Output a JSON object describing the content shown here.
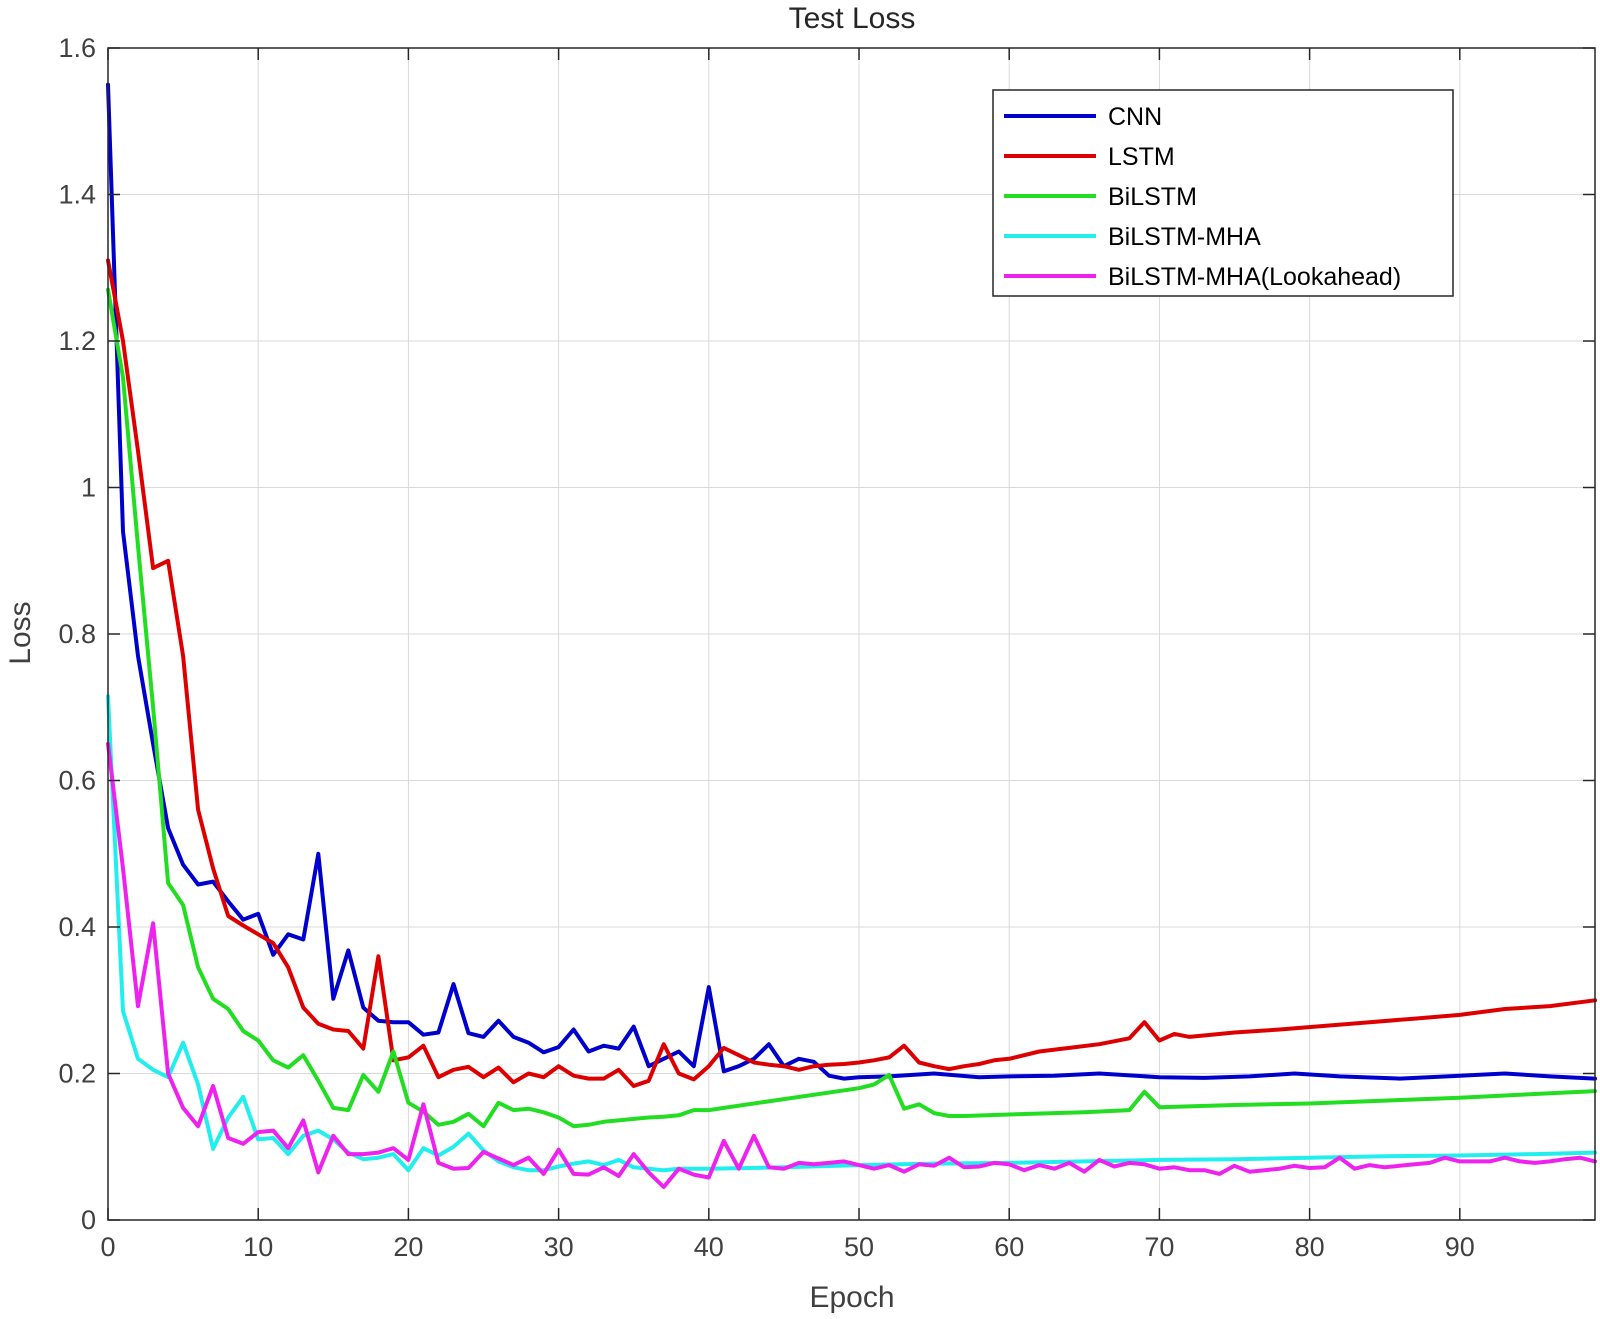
{
  "chart_data": {
    "type": "line",
    "title": "Test Loss",
    "xlabel": "Epoch",
    "ylabel": "Loss",
    "xlim": [
      0,
      99
    ],
    "ylim": [
      0,
      1.6
    ],
    "xticks": [
      0,
      10,
      20,
      30,
      40,
      50,
      60,
      70,
      80,
      90
    ],
    "xtick_labels": [
      "0",
      "10",
      "20",
      "30",
      "40",
      "50",
      "60",
      "70",
      "80",
      "90"
    ],
    "yticks": [
      0,
      0.2,
      0.4,
      0.6,
      0.8,
      1.0,
      1.2,
      1.4,
      1.6
    ],
    "ytick_labels": [
      "0",
      "0.2",
      "0.4",
      "0.6",
      "0.8",
      "1",
      "1.2",
      "1.4",
      "1.6"
    ],
    "grid": true,
    "legend_position": "top-right",
    "series": [
      {
        "name": "CNN",
        "color": "#0000cc",
        "x": [
          0,
          1,
          2,
          3,
          4,
          5,
          6,
          7,
          8,
          9,
          10,
          11,
          12,
          13,
          14,
          15,
          16,
          17,
          18,
          19,
          20,
          21,
          22,
          23,
          24,
          25,
          26,
          27,
          28,
          29,
          30,
          31,
          32,
          33,
          34,
          35,
          36,
          37,
          38,
          39,
          40,
          41,
          42,
          43,
          44,
          45,
          46,
          47,
          48,
          49,
          50,
          52,
          55,
          58,
          60,
          63,
          66,
          70,
          73,
          76,
          79,
          82,
          86,
          90,
          93,
          96,
          99
        ],
        "values": [
          1.55,
          0.94,
          0.77,
          0.65,
          0.535,
          0.485,
          0.458,
          0.462,
          0.435,
          0.41,
          0.418,
          0.362,
          0.39,
          0.383,
          0.5,
          0.302,
          0.368,
          0.29,
          0.272,
          0.27,
          0.27,
          0.253,
          0.256,
          0.322,
          0.255,
          0.25,
          0.272,
          0.25,
          0.242,
          0.229,
          0.236,
          0.26,
          0.23,
          0.238,
          0.234,
          0.264,
          0.21,
          0.22,
          0.23,
          0.21,
          0.318,
          0.203,
          0.21,
          0.22,
          0.24,
          0.21,
          0.22,
          0.216,
          0.197,
          0.193,
          0.195,
          0.196,
          0.2,
          0.195,
          0.196,
          0.197,
          0.2,
          0.195,
          0.194,
          0.196,
          0.2,
          0.196,
          0.193,
          0.197,
          0.2,
          0.196,
          0.193
        ]
      },
      {
        "name": "LSTM",
        "color": "#dd0000",
        "x": [
          0,
          1,
          2,
          3,
          4,
          5,
          6,
          7,
          8,
          9,
          10,
          11,
          12,
          13,
          14,
          15,
          16,
          17,
          18,
          19,
          20,
          21,
          22,
          23,
          24,
          25,
          26,
          27,
          28,
          29,
          30,
          31,
          32,
          33,
          34,
          35,
          36,
          37,
          38,
          39,
          40,
          41,
          42,
          43,
          44,
          45,
          46,
          47,
          48,
          49,
          50,
          51,
          52,
          53,
          54,
          55,
          56,
          57,
          58,
          59,
          60,
          62,
          64,
          66,
          68,
          69,
          70,
          71,
          72,
          75,
          78,
          81,
          84,
          87,
          90,
          93,
          96,
          99
        ],
        "values": [
          1.31,
          1.2,
          1.05,
          0.89,
          0.9,
          0.77,
          0.56,
          0.48,
          0.415,
          0.402,
          0.39,
          0.378,
          0.345,
          0.29,
          0.268,
          0.26,
          0.258,
          0.234,
          0.36,
          0.218,
          0.222,
          0.238,
          0.195,
          0.205,
          0.209,
          0.195,
          0.208,
          0.188,
          0.2,
          0.195,
          0.21,
          0.197,
          0.193,
          0.193,
          0.205,
          0.183,
          0.19,
          0.24,
          0.2,
          0.192,
          0.21,
          0.235,
          0.225,
          0.215,
          0.212,
          0.21,
          0.205,
          0.21,
          0.212,
          0.213,
          0.215,
          0.218,
          0.222,
          0.238,
          0.215,
          0.21,
          0.206,
          0.21,
          0.213,
          0.218,
          0.22,
          0.23,
          0.235,
          0.24,
          0.248,
          0.27,
          0.245,
          0.254,
          0.25,
          0.256,
          0.26,
          0.265,
          0.27,
          0.275,
          0.28,
          0.288,
          0.292,
          0.3
        ]
      },
      {
        "name": "BiLSTM",
        "color": "#22dd22",
        "x": [
          0,
          1,
          2,
          3,
          4,
          5,
          6,
          7,
          8,
          9,
          10,
          11,
          12,
          13,
          14,
          15,
          16,
          17,
          18,
          19,
          20,
          21,
          22,
          23,
          24,
          25,
          26,
          27,
          28,
          29,
          30,
          31,
          32,
          33,
          34,
          35,
          36,
          37,
          38,
          39,
          40,
          45,
          50,
          51,
          52,
          53,
          54,
          55,
          56,
          57,
          60,
          65,
          68,
          69,
          70,
          75,
          80,
          85,
          90,
          95,
          99
        ],
        "values": [
          1.27,
          1.15,
          0.92,
          0.7,
          0.46,
          0.43,
          0.345,
          0.302,
          0.288,
          0.258,
          0.245,
          0.218,
          0.208,
          0.225,
          0.19,
          0.153,
          0.15,
          0.198,
          0.175,
          0.23,
          0.16,
          0.148,
          0.13,
          0.134,
          0.145,
          0.128,
          0.16,
          0.15,
          0.152,
          0.147,
          0.14,
          0.128,
          0.13,
          0.134,
          0.136,
          0.138,
          0.14,
          0.141,
          0.143,
          0.15,
          0.15,
          0.165,
          0.18,
          0.185,
          0.198,
          0.152,
          0.158,
          0.146,
          0.142,
          0.142,
          0.144,
          0.147,
          0.15,
          0.175,
          0.154,
          0.157,
          0.159,
          0.163,
          0.167,
          0.172,
          0.176
        ]
      },
      {
        "name": "BiLSTM-MHA",
        "color": "#22eeee",
        "x": [
          0,
          1,
          2,
          3,
          4,
          5,
          6,
          7,
          8,
          9,
          10,
          11,
          12,
          13,
          14,
          15,
          16,
          17,
          18,
          19,
          20,
          21,
          22,
          23,
          24,
          25,
          26,
          27,
          28,
          29,
          30,
          31,
          32,
          33,
          34,
          35,
          36,
          37,
          38,
          39,
          40,
          45,
          50,
          55,
          60,
          65,
          70,
          75,
          80,
          85,
          90,
          95,
          99
        ],
        "values": [
          0.715,
          0.285,
          0.22,
          0.205,
          0.195,
          0.242,
          0.185,
          0.097,
          0.14,
          0.168,
          0.11,
          0.112,
          0.09,
          0.115,
          0.122,
          0.11,
          0.092,
          0.083,
          0.085,
          0.09,
          0.068,
          0.098,
          0.088,
          0.1,
          0.118,
          0.095,
          0.08,
          0.072,
          0.068,
          0.068,
          0.073,
          0.077,
          0.08,
          0.075,
          0.082,
          0.072,
          0.07,
          0.068,
          0.07,
          0.07,
          0.07,
          0.072,
          0.075,
          0.077,
          0.078,
          0.08,
          0.082,
          0.083,
          0.085,
          0.087,
          0.088,
          0.09,
          0.092
        ]
      },
      {
        "name": "BiLSTM-MHA(Lookahead)",
        "color": "#ee22ee",
        "x": [
          0,
          1,
          2,
          3,
          4,
          5,
          6,
          7,
          8,
          9,
          10,
          11,
          12,
          13,
          14,
          15,
          16,
          17,
          18,
          19,
          20,
          21,
          22,
          23,
          24,
          25,
          26,
          27,
          28,
          29,
          30,
          31,
          32,
          33,
          34,
          35,
          36,
          37,
          38,
          39,
          40,
          41,
          42,
          43,
          44,
          45,
          46,
          47,
          48,
          49,
          50,
          51,
          52,
          53,
          54,
          55,
          56,
          57,
          58,
          59,
          60,
          61,
          62,
          63,
          64,
          65,
          66,
          67,
          68,
          69,
          70,
          71,
          72,
          73,
          74,
          75,
          76,
          77,
          78,
          79,
          80,
          81,
          82,
          83,
          84,
          85,
          86,
          87,
          88,
          89,
          90,
          91,
          92,
          93,
          94,
          95,
          96,
          97,
          98,
          99
        ],
        "values": [
          0.65,
          0.48,
          0.292,
          0.405,
          0.2,
          0.153,
          0.128,
          0.183,
          0.112,
          0.104,
          0.12,
          0.122,
          0.098,
          0.136,
          0.065,
          0.115,
          0.09,
          0.09,
          0.092,
          0.098,
          0.082,
          0.158,
          0.078,
          0.07,
          0.071,
          0.093,
          0.084,
          0.075,
          0.085,
          0.063,
          0.096,
          0.063,
          0.062,
          0.072,
          0.06,
          0.09,
          0.065,
          0.045,
          0.07,
          0.062,
          0.058,
          0.108,
          0.07,
          0.115,
          0.072,
          0.07,
          0.078,
          0.076,
          0.078,
          0.08,
          0.075,
          0.07,
          0.075,
          0.066,
          0.076,
          0.074,
          0.085,
          0.072,
          0.073,
          0.078,
          0.076,
          0.068,
          0.075,
          0.07,
          0.078,
          0.066,
          0.082,
          0.073,
          0.078,
          0.076,
          0.07,
          0.072,
          0.068,
          0.068,
          0.063,
          0.074,
          0.066,
          0.068,
          0.07,
          0.074,
          0.071,
          0.072,
          0.085,
          0.07,
          0.075,
          0.072,
          0.074,
          0.076,
          0.078,
          0.085,
          0.08,
          0.08,
          0.08,
          0.085,
          0.08,
          0.078,
          0.08,
          0.083,
          0.085,
          0.08
        ]
      }
    ]
  }
}
